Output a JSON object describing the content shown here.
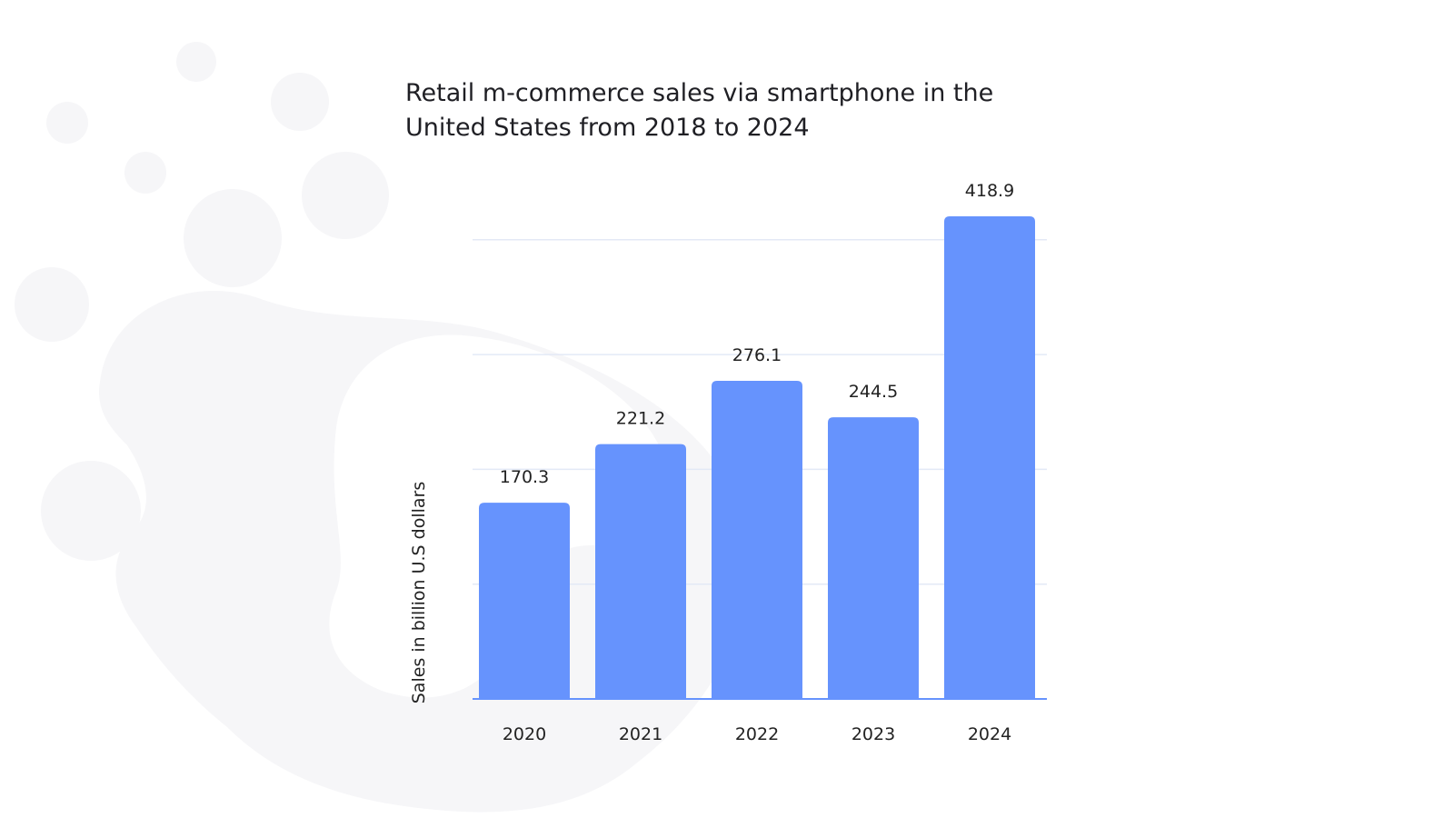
{
  "chart_data": {
    "type": "bar",
    "title": "Retail m-commerce sales via smartphone in the\nUnited States from 2018 to 2024",
    "xlabel": "",
    "ylabel": "Sales in billion U.S dollars",
    "categories": [
      "2020",
      "2021",
      "2022",
      "2023",
      "2024"
    ],
    "values": [
      170.3,
      221.2,
      276.1,
      244.5,
      418.9
    ],
    "value_labels": [
      "170.3",
      "221.2",
      "276.1",
      "244.5",
      "418.9"
    ],
    "bar_color": "#6693fd",
    "grid": true,
    "grid_color": "#e3e9f6",
    "axis_color": "#6693fd",
    "legend": "none"
  }
}
